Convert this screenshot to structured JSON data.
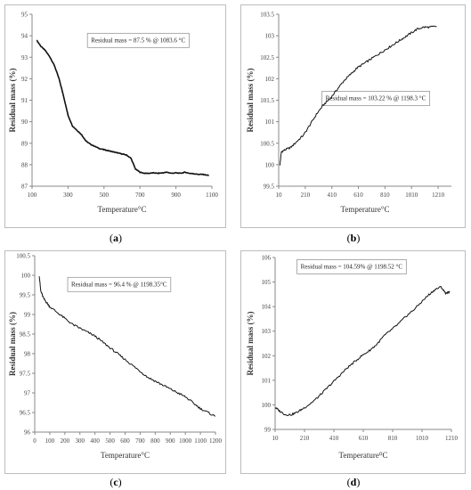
{
  "chart_data": [
    {
      "id": "a",
      "type": "line",
      "caption": "a",
      "xlabel": "Temperature°C",
      "ylabel": "Residual mass (%)",
      "xlim": [
        100,
        1100
      ],
      "ylim": [
        87,
        95
      ],
      "xticks": [
        100,
        300,
        500,
        700,
        900,
        1100
      ],
      "yticks": [
        87,
        88,
        89,
        90,
        91,
        92,
        93,
        94,
        95
      ],
      "annotation": "Residual mass = 87.5 % @ 1083.6 °C",
      "annotation_pos": [
        690,
        93.7
      ],
      "grid": false,
      "series": [
        {
          "x": [
            125,
            150,
            175,
            200,
            225,
            250,
            275,
            300,
            325,
            350,
            375,
            400,
            425,
            450,
            475,
            500,
            525,
            550,
            575,
            600,
            625,
            650,
            675,
            700,
            725,
            750,
            775,
            800,
            825,
            850,
            875,
            900,
            925,
            950,
            975,
            1000,
            1025,
            1050,
            1083.6
          ],
          "y": [
            93.8,
            93.5,
            93.3,
            93.0,
            92.6,
            92.0,
            91.2,
            90.3,
            89.8,
            89.6,
            89.4,
            89.1,
            88.95,
            88.85,
            88.75,
            88.7,
            88.65,
            88.6,
            88.55,
            88.5,
            88.45,
            88.3,
            87.8,
            87.65,
            87.6,
            87.6,
            87.62,
            87.6,
            87.62,
            87.65,
            87.6,
            87.62,
            87.6,
            87.65,
            87.6,
            87.58,
            87.55,
            87.55,
            87.5
          ]
        }
      ]
    },
    {
      "id": "b",
      "type": "line",
      "caption": "b",
      "xlabel": "Temperature°C",
      "ylabel": "Residual mass (%)",
      "xlim": [
        10,
        1310
      ],
      "ylim": [
        99.5,
        103.5
      ],
      "xticks": [
        10,
        210,
        410,
        610,
        810,
        1010,
        1210
      ],
      "yticks": [
        99.5,
        100,
        100.5,
        101,
        101.5,
        102,
        102.5,
        103,
        103.5
      ],
      "annotation": "Residual mass = 103.22 % @ 1198.3 °C",
      "annotation_pos": [
        740,
        101.5
      ],
      "grid": false,
      "series": [
        {
          "x": [
            20,
            30,
            60,
            100,
            150,
            200,
            250,
            300,
            350,
            400,
            450,
            500,
            550,
            600,
            650,
            700,
            750,
            800,
            850,
            900,
            950,
            1000,
            1050,
            1100,
            1150,
            1198.3
          ],
          "y": [
            100.0,
            100.3,
            100.35,
            100.4,
            100.55,
            100.7,
            100.95,
            101.2,
            101.4,
            101.55,
            101.75,
            101.95,
            102.1,
            102.25,
            102.35,
            102.45,
            102.55,
            102.65,
            102.75,
            102.85,
            102.95,
            103.05,
            103.15,
            103.2,
            103.2,
            103.22
          ]
        }
      ]
    },
    {
      "id": "c",
      "type": "line",
      "caption": "c",
      "xlabel": "Temperature°C",
      "ylabel": "Residual mass (%)",
      "xlim": [
        0,
        1200
      ],
      "ylim": [
        96,
        100.5
      ],
      "xticks": [
        0,
        100,
        200,
        300,
        400,
        500,
        600,
        700,
        800,
        900,
        1000,
        1100,
        1200
      ],
      "yticks": [
        96,
        96.5,
        97,
        97.5,
        98,
        98.5,
        99,
        99.5,
        100,
        100.5
      ],
      "annotation": "Residual mass = 96.4 % @ 1198.35°C",
      "annotation_pos": [
        560,
        99.72
      ],
      "grid": false,
      "series": [
        {
          "x": [
            30,
            40,
            60,
            80,
            100,
            150,
            200,
            250,
            300,
            350,
            400,
            450,
            500,
            550,
            600,
            650,
            700,
            750,
            800,
            850,
            900,
            950,
            1000,
            1050,
            1100,
            1150,
            1198.35
          ],
          "y": [
            100.0,
            99.6,
            99.4,
            99.3,
            99.2,
            99.05,
            98.9,
            98.75,
            98.65,
            98.55,
            98.45,
            98.3,
            98.15,
            98.0,
            97.85,
            97.7,
            97.55,
            97.4,
            97.3,
            97.2,
            97.1,
            97.0,
            96.9,
            96.75,
            96.6,
            96.5,
            96.4
          ]
        }
      ]
    },
    {
      "id": "d",
      "type": "line",
      "caption": "d",
      "xlabel": "Temperature⁰C",
      "ylabel": "Residual mass (%)",
      "xlim": [
        10,
        1210
      ],
      "ylim": [
        99,
        106
      ],
      "xticks": [
        10,
        210,
        410,
        610,
        810,
        1010,
        1210
      ],
      "yticks": [
        99,
        100,
        101,
        102,
        103,
        104,
        105,
        106
      ],
      "annotation": "Residual mass = 104.59% @ 1198.52 °C",
      "annotation_pos": [
        530,
        105.55
      ],
      "grid": false,
      "series": [
        {
          "x": [
            10,
            40,
            80,
            120,
            160,
            200,
            250,
            300,
            350,
            400,
            450,
            500,
            550,
            600,
            650,
            700,
            750,
            800,
            850,
            900,
            950,
            1000,
            1050,
            1100,
            1140,
            1170,
            1198.52
          ],
          "y": [
            99.9,
            99.75,
            99.6,
            99.6,
            99.7,
            99.85,
            100.05,
            100.3,
            100.6,
            100.9,
            101.2,
            101.5,
            101.75,
            102.0,
            102.2,
            102.45,
            102.8,
            103.05,
            103.3,
            103.6,
            103.85,
            104.15,
            104.45,
            104.7,
            104.8,
            104.55,
            104.59
          ]
        }
      ]
    }
  ]
}
